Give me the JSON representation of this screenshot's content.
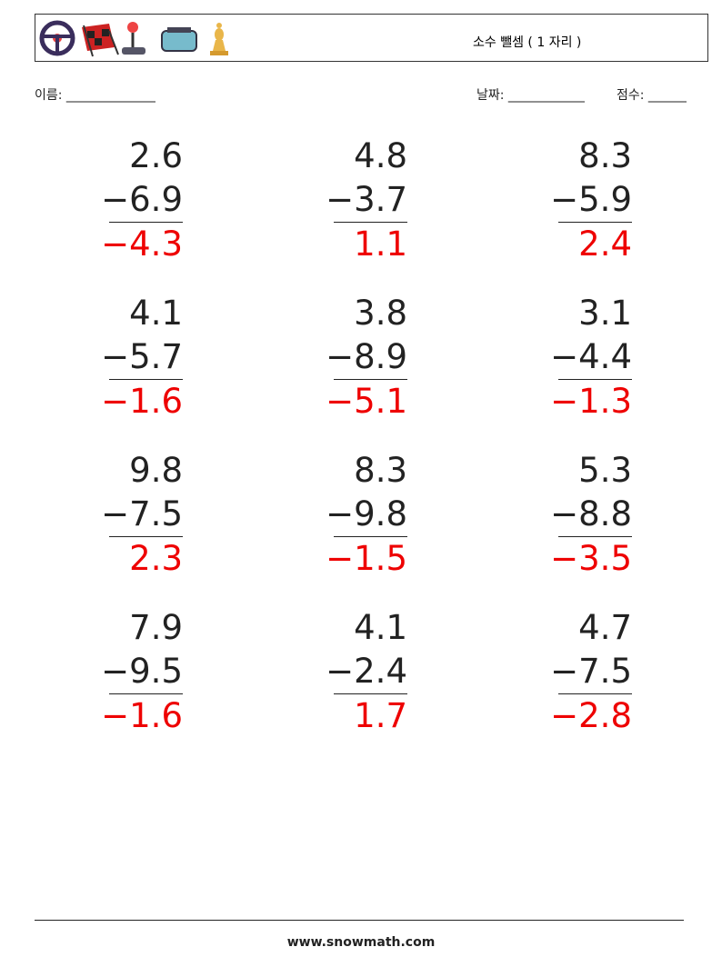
{
  "header": {
    "title": "소수 뺄셈 ( 1 자리 )"
  },
  "fields": {
    "name": "이름: ______________",
    "date": "날짜: ____________",
    "score": "점수: ______"
  },
  "problems": [
    {
      "top": "2.6",
      "bottom": "−6.9",
      "answer": "−4.3"
    },
    {
      "top": "4.8",
      "bottom": "−3.7",
      "answer": "1.1"
    },
    {
      "top": "8.3",
      "bottom": "−5.9",
      "answer": "2.4"
    },
    {
      "top": "4.1",
      "bottom": "−5.7",
      "answer": "−1.6"
    },
    {
      "top": "3.8",
      "bottom": "−8.9",
      "answer": "−5.1"
    },
    {
      "top": "3.1",
      "bottom": "−4.4",
      "answer": "−1.3"
    },
    {
      "top": "9.8",
      "bottom": "−7.5",
      "answer": "2.3"
    },
    {
      "top": "8.3",
      "bottom": "−9.8",
      "answer": "−1.5"
    },
    {
      "top": "5.3",
      "bottom": "−8.8",
      "answer": "−3.5"
    },
    {
      "top": "7.9",
      "bottom": "−9.5",
      "answer": "−1.6"
    },
    {
      "top": "4.1",
      "bottom": "−2.4",
      "answer": "1.7"
    },
    {
      "top": "4.7",
      "bottom": "−7.5",
      "answer": "−2.8"
    }
  ],
  "footer": {
    "site": "www.snowmath.com"
  }
}
